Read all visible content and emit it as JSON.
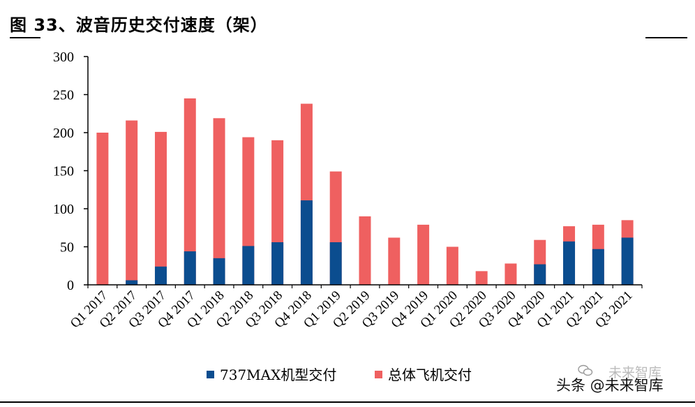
{
  "header": {
    "title": "图 33、波音历史交付速度（架）"
  },
  "watermark": {
    "text": "头条 @未来智库",
    "faint_text": "未来智库",
    "icon": "wechat-icon"
  },
  "colors": {
    "max737": "#0b4d8f",
    "total": "#ef6060",
    "axis": "#000000"
  },
  "chart_data": {
    "type": "bar",
    "stacked": "overlay",
    "categories": [
      "Q1 2017",
      "Q2 2017",
      "Q3 2017",
      "Q4 2017",
      "Q1 2018",
      "Q2 2018",
      "Q3 2018",
      "Q4 2018",
      "Q1 2019",
      "Q2 2019",
      "Q3 2019",
      "Q4 2019",
      "Q1 2020",
      "Q2 2020",
      "Q3 2020",
      "Q4 2020",
      "Q1 2021",
      "Q2 2021",
      "Q3 2021"
    ],
    "series": [
      {
        "name": "737MAX机型交付",
        "values": [
          0,
          6,
          24,
          44,
          35,
          51,
          56,
          111,
          56,
          0,
          0,
          0,
          0,
          0,
          0,
          27,
          57,
          47,
          62
        ]
      },
      {
        "name": "总体飞机交付",
        "values": [
          200,
          216,
          201,
          245,
          219,
          194,
          190,
          238,
          149,
          90,
          62,
          79,
          50,
          18,
          28,
          59,
          77,
          79,
          85
        ]
      }
    ],
    "ylim": [
      0,
      300
    ],
    "yticks": [
      "0",
      "50",
      "100",
      "150",
      "200",
      "250",
      "300"
    ],
    "grid": false,
    "legend": "bottom-center"
  }
}
